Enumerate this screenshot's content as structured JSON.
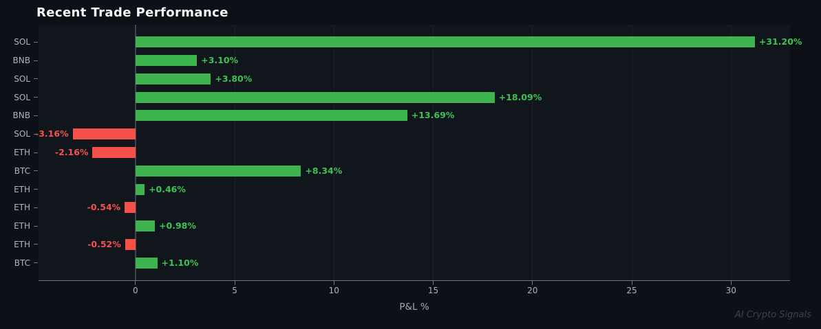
{
  "title": "Recent Trade Performance",
  "watermark": "AI Crypto Signals",
  "colors": {
    "background": "#0d1017",
    "plot_background": "#11151c",
    "positive": "#3eb44e",
    "negative": "#f5504a",
    "positive_label": "#3fc254",
    "negative_label": "#f5524d",
    "grid": "#1b2028",
    "zero_line": "#3e4450",
    "axis": "#70767f",
    "tick_label": "#aeb4bb",
    "title": "#f4f6f8",
    "watermark": "#3b414d"
  },
  "chart_data": {
    "type": "bar",
    "orientation": "horizontal",
    "title": "Recent Trade Performance",
    "xlabel": "P&L %",
    "ylabel": "",
    "categories": [
      "SOL",
      "BNB",
      "SOL",
      "SOL",
      "BNB",
      "SOL",
      "ETH",
      "BTC",
      "ETH",
      "ETH",
      "ETH",
      "ETH",
      "BTC"
    ],
    "values": [
      31.2,
      3.1,
      3.8,
      18.09,
      13.69,
      -3.16,
      -2.16,
      8.34,
      0.46,
      -0.54,
      0.98,
      -0.52,
      1.1
    ],
    "labels": [
      "+31.20%",
      "+3.10%",
      "+3.80%",
      "+18.09%",
      "+13.69%",
      "-3.16%",
      "-2.16%",
      "+8.34%",
      "+0.46%",
      "-0.54%",
      "+0.98%",
      "-0.52%",
      "+1.10%"
    ],
    "xticks": [
      0,
      5,
      10,
      15,
      20,
      25,
      30
    ],
    "xlim": [
      -4.88,
      32.97
    ],
    "grid": true,
    "legend": null
  }
}
